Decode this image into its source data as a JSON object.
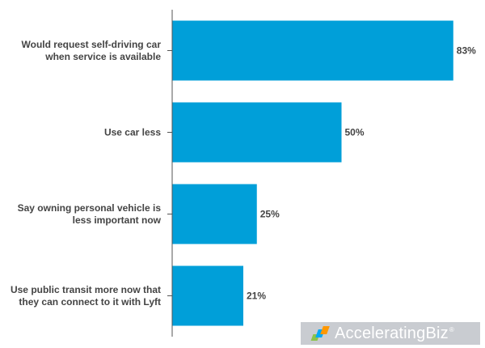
{
  "chart_data": {
    "type": "bar",
    "orientation": "horizontal",
    "categories": [
      [
        "Would request self-driving car",
        "when service is available"
      ],
      [
        "Use car less"
      ],
      [
        "Say owning personal vehicle is",
        "less important now"
      ],
      [
        "Use public transit more now that",
        "they can connect to it with Lyft"
      ]
    ],
    "values": [
      83,
      50,
      25,
      21
    ],
    "value_labels": [
      "83%",
      "50%",
      "25%",
      "21%"
    ],
    "xlim": [
      0,
      100
    ],
    "bar_color": "#009fd9",
    "axis_color": "#555555"
  },
  "watermark": {
    "text": "AcceleratingBiz",
    "mark": "®"
  }
}
